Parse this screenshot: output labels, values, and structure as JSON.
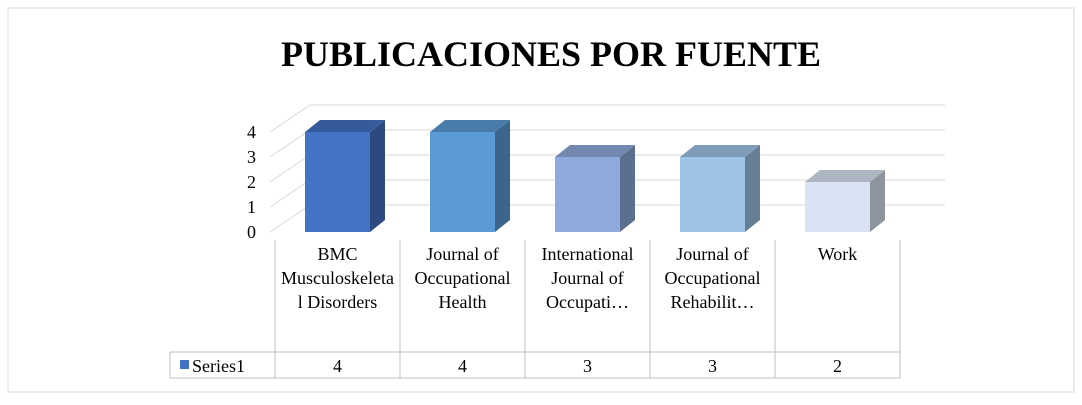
{
  "chart_data": {
    "type": "bar3d",
    "title": "PUBLICACIONES POR FUENTE",
    "categories": [
      "BMC Musculoskeletal Disorders",
      "Journal of Occupational Health",
      "International Journal of Occupati…",
      "Journal of Occupational Rehabilit…",
      "Work"
    ],
    "series": [
      {
        "name": "Series1",
        "color": "#4472c4",
        "point_colors": [
          "#4472c4",
          "#5b9bd5",
          "#8faadc",
          "#9dc3e6",
          "#dae3f3"
        ],
        "values": [
          4,
          4,
          3,
          3,
          2
        ]
      }
    ],
    "ylim": [
      0,
      4
    ],
    "yticks": [
      0,
      1,
      2,
      3,
      4
    ],
    "grid": true,
    "data_table": true
  }
}
